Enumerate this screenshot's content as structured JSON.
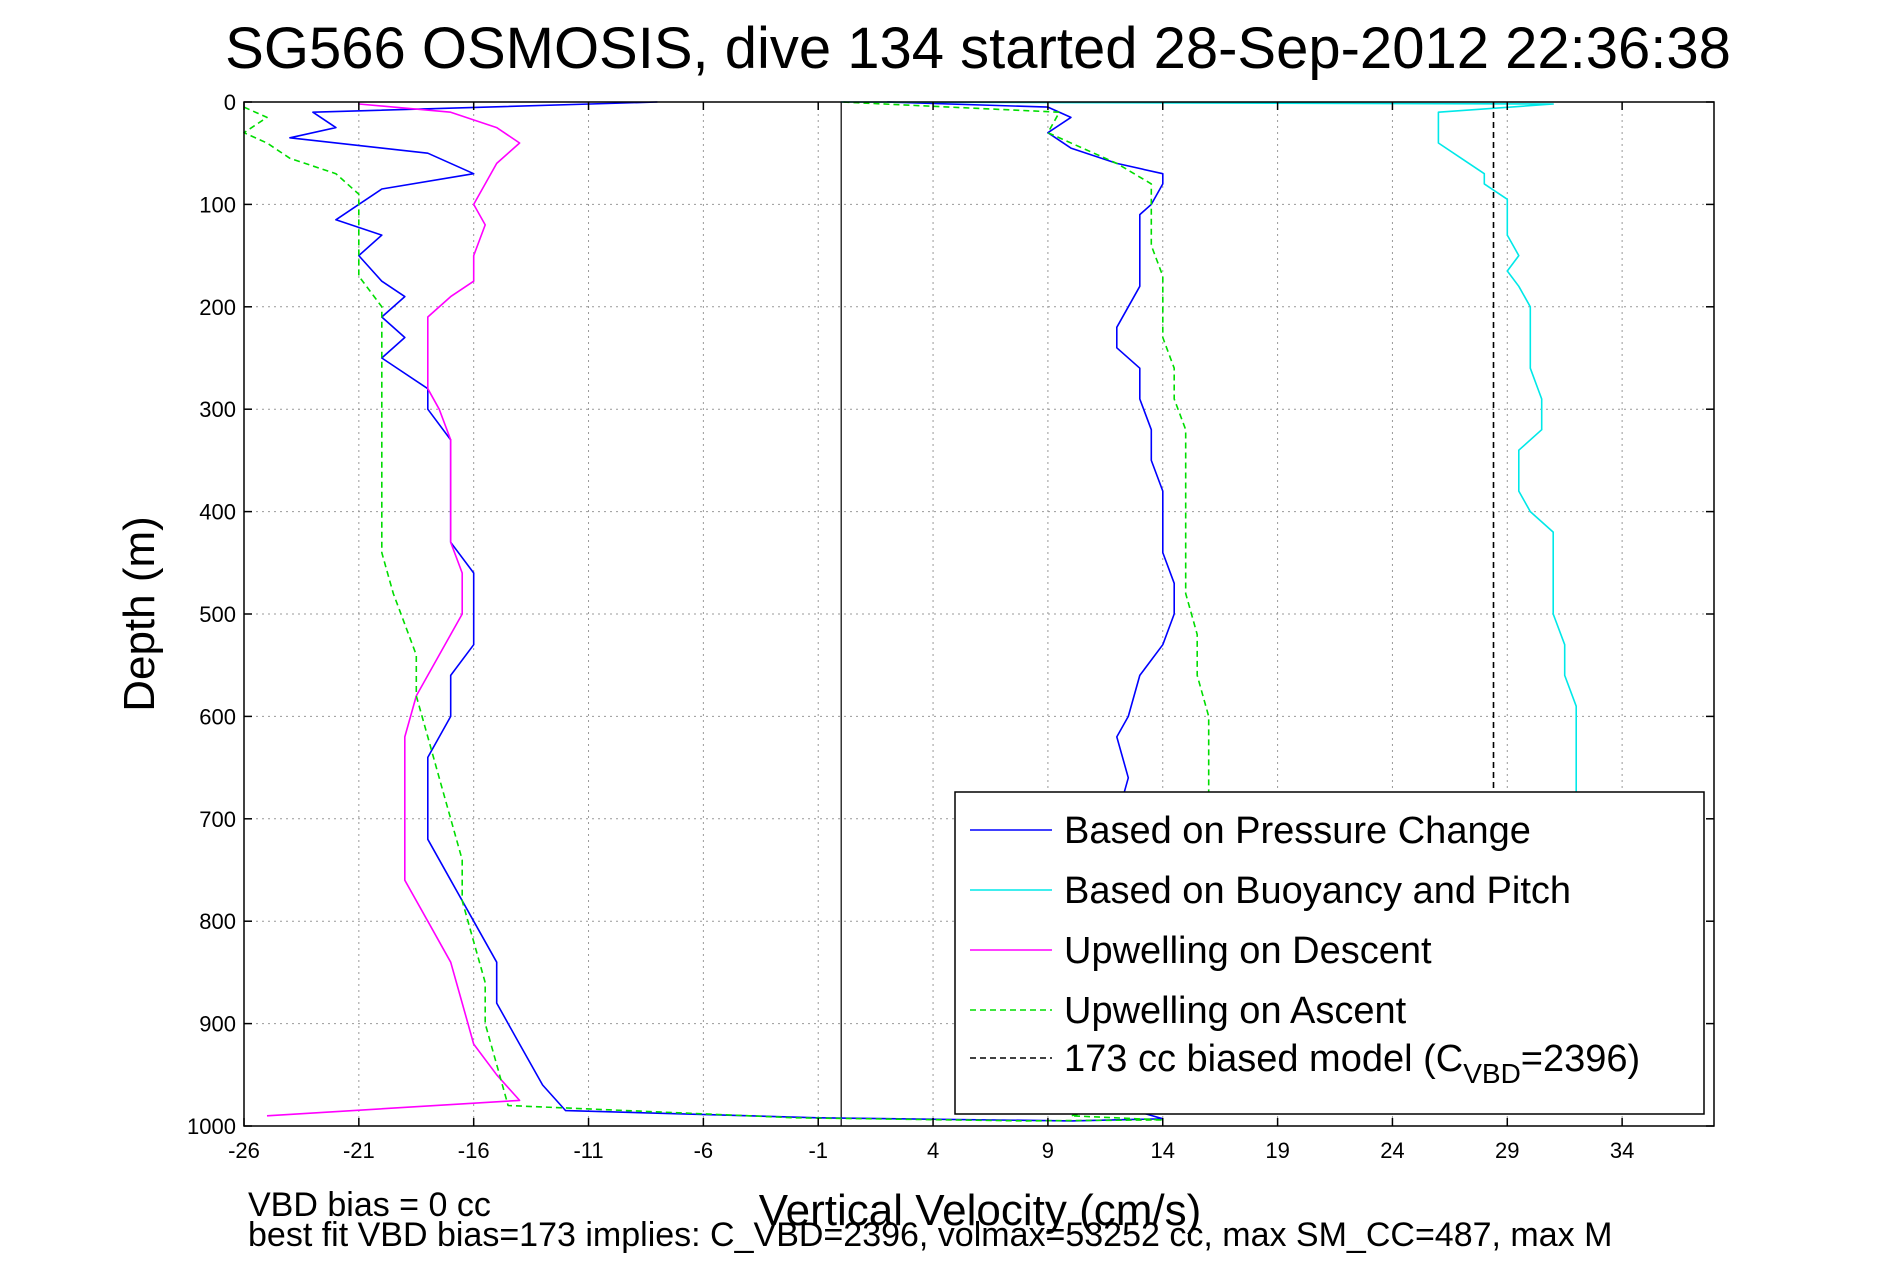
{
  "chart_data": {
    "type": "line",
    "title": "SG566 OSMOSIS, dive 134 started 28-Sep-2012 22:36:38",
    "xlabel": "Vertical Velocity (cm/s)",
    "ylabel": "Depth (m)",
    "xlim": [
      -26,
      38
    ],
    "ylim": [
      0,
      1000
    ],
    "y_reversed": true,
    "grid": true,
    "x_ticks": [
      "-26",
      "-21",
      "-16",
      "-11",
      "-6",
      "-1",
      "4",
      "9",
      "14",
      "19",
      "24",
      "29",
      "34"
    ],
    "y_ticks": [
      "0",
      "100",
      "200",
      "300",
      "400",
      "500",
      "600",
      "700",
      "800",
      "900",
      "1000"
    ],
    "zero_line_x": 0,
    "legend_position": "bottom-right",
    "series": [
      {
        "name": "Based on Pressure Change",
        "color": "#0000ff",
        "style": "solid",
        "points": [
          [
            -8,
            0
          ],
          [
            -23,
            10
          ],
          [
            -22,
            25
          ],
          [
            -24,
            35
          ],
          [
            -20,
            45
          ],
          [
            -18,
            50
          ],
          [
            -16,
            70
          ],
          [
            -20,
            85
          ],
          [
            -21,
            100
          ],
          [
            -22,
            115
          ],
          [
            -20,
            130
          ],
          [
            -21,
            150
          ],
          [
            -20,
            175
          ],
          [
            -19,
            190
          ],
          [
            -20,
            210
          ],
          [
            -19,
            230
          ],
          [
            -20,
            250
          ],
          [
            -18,
            280
          ],
          [
            -18,
            300
          ],
          [
            -17,
            330
          ],
          [
            -17,
            360
          ],
          [
            -17,
            400
          ],
          [
            -17,
            430
          ],
          [
            -16,
            460
          ],
          [
            -16,
            500
          ],
          [
            -16,
            530
          ],
          [
            -17,
            560
          ],
          [
            -17,
            600
          ],
          [
            -18,
            640
          ],
          [
            -18,
            680
          ],
          [
            -18,
            720
          ],
          [
            -17,
            760
          ],
          [
            -16,
            800
          ],
          [
            -15,
            840
          ],
          [
            -15,
            880
          ],
          [
            -14,
            920
          ],
          [
            -13,
            960
          ],
          [
            -12,
            985
          ],
          [
            -1,
            992
          ],
          [
            10,
            995
          ],
          [
            14,
            993
          ],
          [
            12,
            980
          ],
          [
            12,
            960
          ],
          [
            12,
            940
          ],
          [
            12,
            700
          ],
          [
            12.5,
            660
          ],
          [
            12,
            620
          ],
          [
            12.5,
            600
          ],
          [
            13,
            560
          ],
          [
            14,
            530
          ],
          [
            14.5,
            500
          ],
          [
            14.5,
            470
          ],
          [
            14,
            440
          ],
          [
            14,
            410
          ],
          [
            14,
            380
          ],
          [
            13.5,
            350
          ],
          [
            13.5,
            320
          ],
          [
            13,
            290
          ],
          [
            13,
            260
          ],
          [
            12,
            240
          ],
          [
            12,
            220
          ],
          [
            12.5,
            200
          ],
          [
            13,
            180
          ],
          [
            13,
            160
          ],
          [
            13,
            140
          ],
          [
            13,
            120
          ],
          [
            13,
            110
          ],
          [
            13.5,
            100
          ],
          [
            14,
            80
          ],
          [
            14,
            70
          ],
          [
            12,
            60
          ],
          [
            10,
            45
          ],
          [
            9,
            30
          ],
          [
            10,
            15
          ],
          [
            9,
            5
          ],
          [
            2,
            0
          ]
        ]
      },
      {
        "name": "Based on Buoyancy and Pitch",
        "color": "#00e8e8",
        "style": "solid",
        "points": [
          [
            0,
            0
          ],
          [
            31,
            2
          ],
          [
            26,
            10
          ],
          [
            26,
            25
          ],
          [
            26,
            40
          ],
          [
            27,
            55
          ],
          [
            28,
            70
          ],
          [
            28,
            80
          ],
          [
            29,
            95
          ],
          [
            29,
            110
          ],
          [
            29,
            130
          ],
          [
            29.5,
            150
          ],
          [
            29,
            165
          ],
          [
            29.5,
            180
          ],
          [
            30,
            200
          ],
          [
            30,
            230
          ],
          [
            30,
            260
          ],
          [
            30.5,
            290
          ],
          [
            30.5,
            320
          ],
          [
            29.5,
            340
          ],
          [
            29.5,
            360
          ],
          [
            29.5,
            380
          ],
          [
            30,
            400
          ],
          [
            31,
            420
          ],
          [
            31,
            450
          ],
          [
            31,
            480
          ],
          [
            31,
            500
          ],
          [
            31.5,
            530
          ],
          [
            31.5,
            560
          ],
          [
            32,
            590
          ],
          [
            32,
            620
          ],
          [
            32,
            660
          ],
          [
            32,
            680
          ]
        ]
      },
      {
        "name": "Upwelling on Descent",
        "color": "#ff00ff",
        "style": "solid",
        "points": [
          [
            -21,
            2
          ],
          [
            -17,
            10
          ],
          [
            -15,
            25
          ],
          [
            -14,
            40
          ],
          [
            -15,
            60
          ],
          [
            -15.5,
            80
          ],
          [
            -16,
            100
          ],
          [
            -15.5,
            120
          ],
          [
            -16,
            150
          ],
          [
            -16,
            175
          ],
          [
            -17,
            190
          ],
          [
            -18,
            210
          ],
          [
            -18,
            230
          ],
          [
            -18,
            250
          ],
          [
            -18,
            280
          ],
          [
            -17.5,
            300
          ],
          [
            -17,
            330
          ],
          [
            -17,
            360
          ],
          [
            -17,
            400
          ],
          [
            -17,
            430
          ],
          [
            -16.5,
            460
          ],
          [
            -16.5,
            500
          ],
          [
            -17.5,
            540
          ],
          [
            -18.5,
            580
          ],
          [
            -19,
            620
          ],
          [
            -19,
            660
          ],
          [
            -19,
            700
          ],
          [
            -19,
            730
          ],
          [
            -19,
            760
          ],
          [
            -18,
            800
          ],
          [
            -17,
            840
          ],
          [
            -16.5,
            880
          ],
          [
            -16,
            920
          ],
          [
            -15,
            950
          ],
          [
            -14,
            975
          ],
          [
            -25,
            990
          ]
        ]
      },
      {
        "name": "Upwelling on Ascent",
        "color": "#00dd00",
        "style": "dashed",
        "points": [
          [
            -26,
            5
          ],
          [
            -25,
            15
          ],
          [
            -26,
            30
          ],
          [
            -25,
            40
          ],
          [
            -24,
            55
          ],
          [
            -22,
            70
          ],
          [
            -21,
            90
          ],
          [
            -21,
            110
          ],
          [
            -21,
            140
          ],
          [
            -21,
            170
          ],
          [
            -20,
            200
          ],
          [
            -20,
            240
          ],
          [
            -20,
            280
          ],
          [
            -20,
            320
          ],
          [
            -20,
            360
          ],
          [
            -20,
            400
          ],
          [
            -20,
            440
          ],
          [
            -19.5,
            480
          ],
          [
            -19,
            510
          ],
          [
            -18.5,
            540
          ],
          [
            -18.5,
            580
          ],
          [
            -18,
            620
          ],
          [
            -17.5,
            660
          ],
          [
            -17,
            700
          ],
          [
            -16.5,
            740
          ],
          [
            -16.5,
            780
          ],
          [
            -16,
            820
          ],
          [
            -15.5,
            860
          ],
          [
            -15.5,
            900
          ],
          [
            -15,
            940
          ],
          [
            -14.5,
            980
          ],
          [
            -2,
            992
          ],
          [
            8,
            995
          ],
          [
            14,
            994
          ],
          [
            10,
            990
          ],
          [
            16,
            960
          ],
          [
            16,
            700
          ],
          [
            16,
            680
          ],
          [
            16,
            640
          ],
          [
            16,
            600
          ],
          [
            15.5,
            560
          ],
          [
            15.5,
            520
          ],
          [
            15,
            480
          ],
          [
            15,
            440
          ],
          [
            15,
            410
          ],
          [
            15,
            380
          ],
          [
            15,
            350
          ],
          [
            15,
            320
          ],
          [
            14.5,
            290
          ],
          [
            14.5,
            260
          ],
          [
            14,
            230
          ],
          [
            14,
            200
          ],
          [
            14,
            170
          ],
          [
            13.5,
            140
          ],
          [
            13.5,
            110
          ],
          [
            13.5,
            80
          ],
          [
            12,
            60
          ],
          [
            9,
            30
          ],
          [
            9.5,
            10
          ],
          [
            0,
            0
          ]
        ]
      },
      {
        "name": "173 cc biased model (C",
        "name_sub": "VBD",
        "name_tail": "=2396)",
        "color": "#000000",
        "style": "dashed",
        "points": [
          [
            28.4,
            0
          ],
          [
            28.4,
            670
          ]
        ]
      }
    ],
    "annotations": [
      "VBD bias = 0 cc",
      "best fit VBD bias=173 implies: C_VBD=2396, volmax=53252 cc, max SM_CC=487, max M"
    ]
  }
}
